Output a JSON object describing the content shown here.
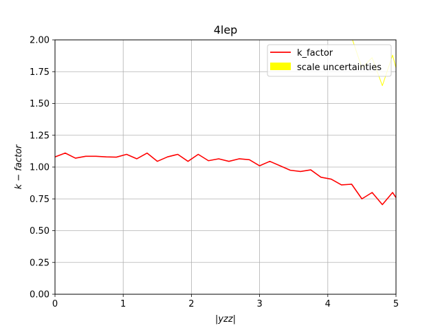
{
  "chart_data": {
    "type": "line",
    "title": "4lep",
    "xlabel": "|yzz|",
    "ylabel": "k − factor",
    "xlim": [
      0,
      5
    ],
    "ylim": [
      0,
      2
    ],
    "xticks": [
      0,
      1,
      2,
      3,
      4,
      5
    ],
    "xtick_labels": [
      "0",
      "1",
      "2",
      "3",
      "4",
      "5"
    ],
    "yticks": [
      0,
      0.25,
      0.5,
      0.75,
      1.0,
      1.25,
      1.5,
      1.75,
      2.0
    ],
    "ytick_labels": [
      "0.00",
      "0.25",
      "0.50",
      "0.75",
      "1.00",
      "1.25",
      "1.50",
      "1.75",
      "2.00"
    ],
    "grid": true,
    "legend_position": "top-right",
    "series": [
      {
        "name": "k_factor",
        "color": "#ff0000",
        "style": "line",
        "x": [
          0.0,
          0.15,
          0.3,
          0.45,
          0.6,
          0.75,
          0.9,
          1.05,
          1.2,
          1.35,
          1.5,
          1.65,
          1.8,
          1.95,
          2.1,
          2.25,
          2.4,
          2.55,
          2.7,
          2.85,
          3.0,
          3.15,
          3.3,
          3.45,
          3.6,
          3.75,
          3.9,
          4.05,
          4.2,
          4.35,
          4.5,
          4.65,
          4.8,
          4.95,
          5.0
        ],
        "y": [
          1.08,
          1.11,
          1.07,
          1.085,
          1.085,
          1.08,
          1.078,
          1.1,
          1.065,
          1.11,
          1.045,
          1.08,
          1.1,
          1.045,
          1.1,
          1.05,
          1.065,
          1.045,
          1.065,
          1.058,
          1.01,
          1.045,
          1.01,
          0.975,
          0.965,
          0.978,
          0.92,
          0.905,
          0.86,
          0.865,
          0.75,
          0.8,
          0.705,
          0.8,
          0.76
        ]
      },
      {
        "name": "scale uncertainties",
        "color": "#ffff00",
        "style": "band",
        "x": [
          4.35,
          4.5,
          4.65,
          4.8,
          4.95,
          5.0
        ],
        "y": [
          2.02,
          1.78,
          1.86,
          1.64,
          1.88,
          1.78
        ]
      }
    ]
  }
}
